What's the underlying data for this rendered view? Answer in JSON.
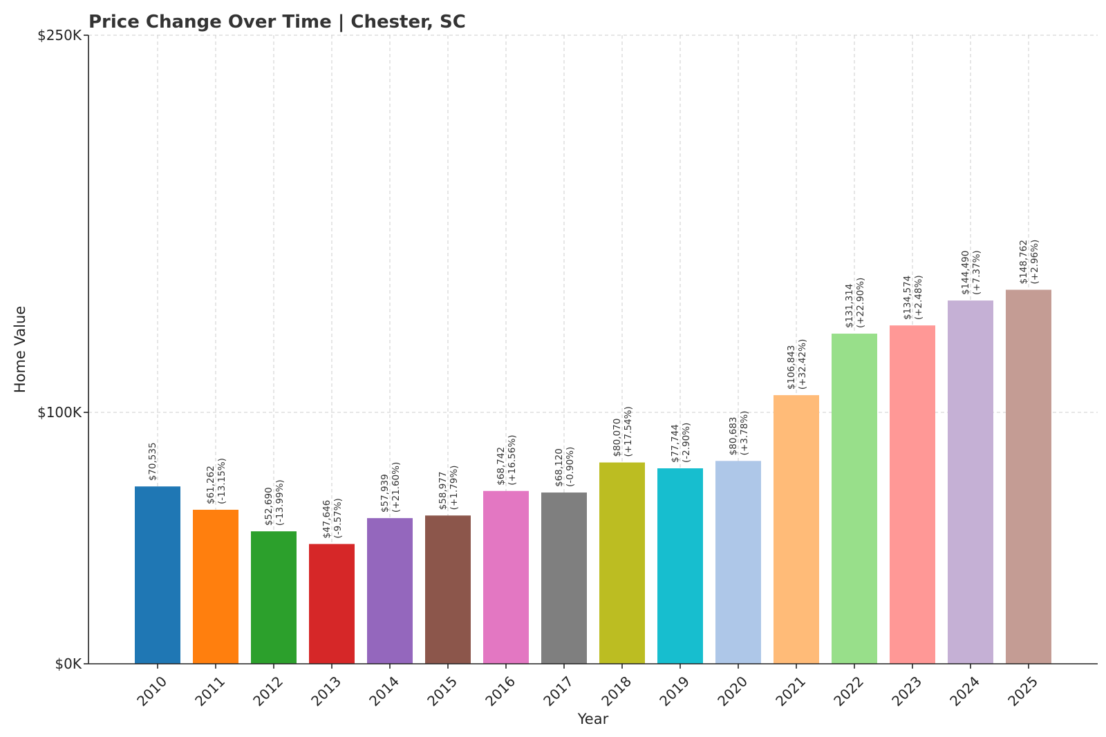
{
  "chart_data": {
    "type": "bar",
    "title": "Price Change Over Time | Chester, SC",
    "xlabel": "Year",
    "ylabel": "Home Value",
    "ylim": [
      0,
      250000
    ],
    "yticks": [
      0,
      100000,
      250000
    ],
    "ytick_labels": [
      "$0K",
      "$100K",
      "$250K"
    ],
    "grid": true,
    "categories": [
      "2010",
      "2011",
      "2012",
      "2013",
      "2014",
      "2015",
      "2016",
      "2017",
      "2018",
      "2019",
      "2020",
      "2021",
      "2022",
      "2023",
      "2024",
      "2025"
    ],
    "values": [
      70535,
      61262,
      52690,
      47646,
      57939,
      58977,
      68742,
      68120,
      80070,
      77744,
      80683,
      106843,
      131314,
      134574,
      144490,
      148762
    ],
    "value_labels": [
      "$70,535",
      "$61,262",
      "$52,690",
      "$47,646",
      "$57,939",
      "$58,977",
      "$68,742",
      "$68,120",
      "$80,070",
      "$77,744",
      "$80,683",
      "$106,843",
      "$131,314",
      "$134,574",
      "$144,490",
      "$148,762"
    ],
    "change_labels": [
      "",
      "(-13.15%)",
      "(-13.99%)",
      "(-9.57%)",
      "(+21.60%)",
      "(+1.79%)",
      "(+16.56%)",
      "(-0.90%)",
      "(+17.54%)",
      "(-2.90%)",
      "(+3.78%)",
      "(+32.42%)",
      "(+22.90%)",
      "(+2.48%)",
      "(+7.37%)",
      "(+2.96%)"
    ],
    "colors": [
      "#1f77b4",
      "#ff7f0e",
      "#2ca02c",
      "#d62728",
      "#9467bd",
      "#8c564b",
      "#e377c2",
      "#7f7f7f",
      "#bcbd22",
      "#17becf",
      "#aec7e8",
      "#ffbb78",
      "#98df8a",
      "#ff9896",
      "#c5b0d5",
      "#c49c94"
    ]
  }
}
